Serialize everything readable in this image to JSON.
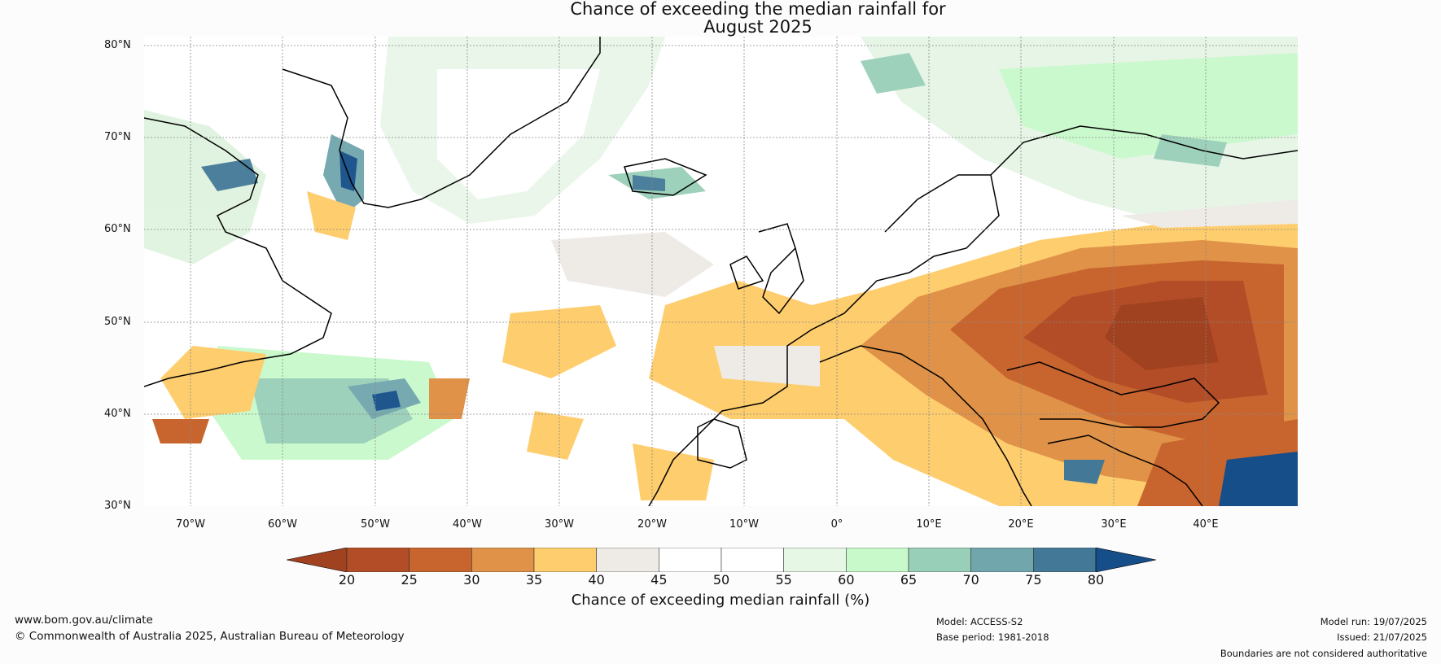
{
  "title": {
    "line1": "Chance of exceeding the median rainfall for",
    "line2": "August 2025"
  },
  "map": {
    "region": "North Atlantic and Europe",
    "lat_labels": [
      "80°N",
      "70°N",
      "60°N",
      "50°N",
      "40°N",
      "30°N"
    ],
    "lon_labels": [
      "70°W",
      "60°W",
      "50°W",
      "40°W",
      "30°W",
      "20°W",
      "10°W",
      "0°",
      "10°E",
      "20°E",
      "30°E",
      "40°E"
    ]
  },
  "colorbar": {
    "ticks": [
      "20",
      "25",
      "30",
      "35",
      "40",
      "45",
      "50",
      "55",
      "60",
      "65",
      "70",
      "75",
      "80"
    ],
    "colors": [
      "#a0421f",
      "#b34d27",
      "#c8652e",
      "#df9248",
      "#fecd6d",
      "#eeebe6",
      "#ffffff",
      "#ffffff",
      "#e6f7e6",
      "#c8f9cb",
      "#98cfb8",
      "#70a6ac",
      "#437996",
      "#154e88"
    ],
    "label": "Chance of exceeding median rainfall (%)"
  },
  "footer": {
    "website": "www.bom.gov.au/climate",
    "copyright": "© Commonwealth of Australia 2025, Australian Bureau of Meteorology",
    "model": "Model: ACCESS-S2",
    "base_period": "Base period: 1981-2018",
    "model_run": "Model run: 19/07/2025",
    "issued": "Issued: 21/07/2025",
    "boundaries_note": "Boundaries are not considered authoritative"
  }
}
